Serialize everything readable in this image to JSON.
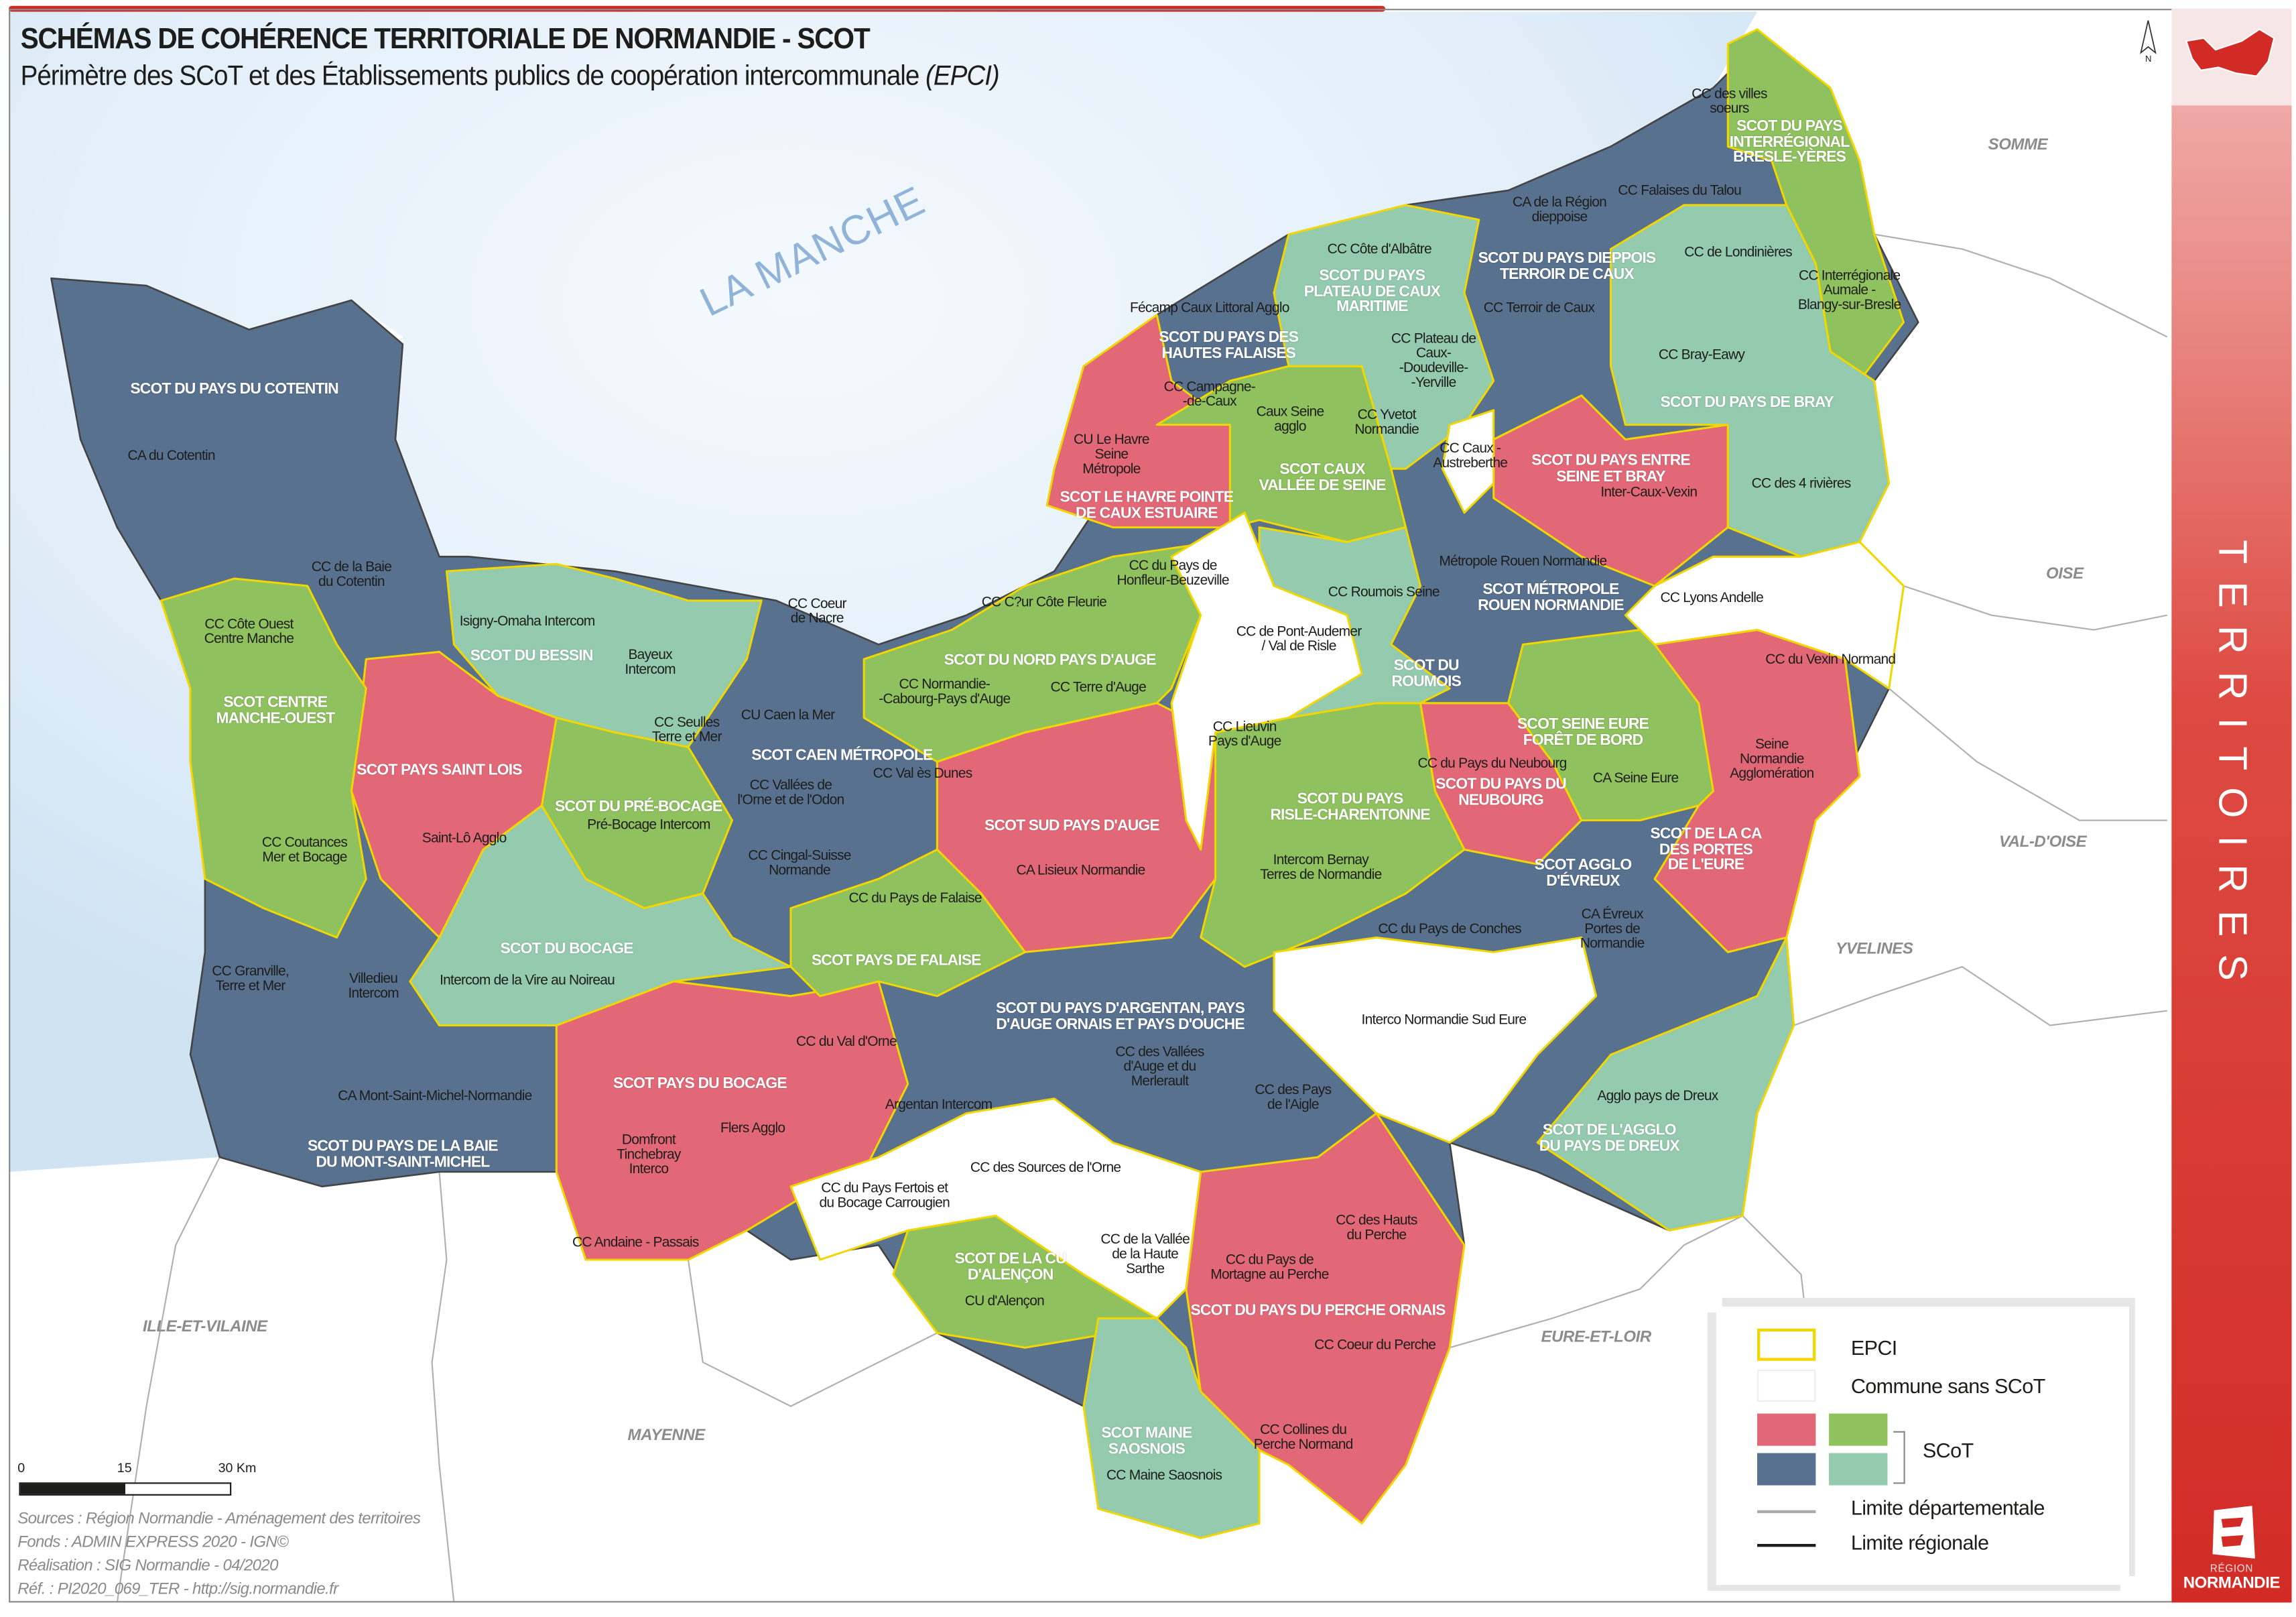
{
  "title": "SCHÉMAS DE COHÉRENCE TERRITORIALE DE NORMANDIE - SCOT",
  "subtitle": "Périmètre des SCoT et des Établissements publics de coopération intercommunale",
  "subtitle_abbr": "(EPCI)",
  "colors": {
    "scot_red": "#E36877",
    "scot_green": "#8FC25E",
    "scot_blue": "#58718F",
    "scot_teal": "#94CBAE",
    "epci_border": "#F2D600",
    "sea": "#dcebf7",
    "brand_red": "#D22B26"
  },
  "sea_label": "LA MANCHE",
  "neighbors": [
    "SOMME",
    "OISE",
    "VAL-D'OISE",
    "YVELINES",
    "EURE-ET-LOIR",
    "MAYENNE",
    "ILLE-ET-VILAINE"
  ],
  "scot_labels": [
    "SCOT DU PAYS DU COTENTIN",
    "SCOT CENTRE\nMANCHE-OUEST",
    "SCOT PAYS SAINT LOIS",
    "SCOT DU BESSIN",
    "SCOT DU PRÉ-BOCAGE",
    "SCOT CAEN MÉTROPOLE",
    "SCOT DU BOCAGE",
    "SCOT PAYS DU BOCAGE",
    "SCOT DU PAYS DE LA BAIE\nDU MONT-SAINT-MICHEL",
    "SCOT PAYS DE FALAISE",
    "SCOT DU NORD PAYS D'AUGE",
    "SCOT SUD PAYS D'AUGE",
    "SCOT DU PAYS D'ARGENTAN, PAYS\nD'AUGE ORNAIS ET PAYS D'OUCHE",
    "SCOT DE LA CU\nD'ALENÇON",
    "SCOT MAINE\nSAOSNOIS",
    "SCOT DU PAYS DU PERCHE ORNAIS",
    "SCOT DU PAYS\nRISLE-CHARENTONNE",
    "SCOT DU\nROUMOIS",
    "SCOT MÉTROPOLE\nROUEN NORMANDIE",
    "SCOT SEINE EURE\nFORÊT DE BORD",
    "SCOT DU PAYS DU\nNEUBOURG",
    "SCOT AGGLO\nD'ÉVREUX",
    "SCOT DE LA CA\nDES PORTES\nDE L'EURE",
    "SCOT DE L'AGGLO\nDU PAYS DE DREUX",
    "SCOT LE HAVRE POINTE\nDE CAUX ESTUAIRE",
    "SCOT CAUX\nVALLÉE DE SEINE",
    "SCOT DU PAYS DES\nHAUTES FALAISES",
    "SCOT DU PAYS\nPLATEAU DE CAUX\nMARITIME",
    "SCOT DU PAYS DIEPPOIS\nTERROIR DE CAUX",
    "SCOT DU PAYS ENTRE\nSEINE ET BRAY",
    "SCOT DU PAYS DE BRAY",
    "SCOT DU PAYS\nINTERRÉGIONAL\nBRESLE-YÈRES"
  ],
  "epci_labels": [
    "CA du Cotentin",
    "CC de la Baie\ndu Cotentin",
    "CC Côte Ouest\nCentre Manche",
    "Isigny-Omaha Intercom",
    "Bayeux\nIntercom",
    "CC Coeur\nde Nacre",
    "CC Seulles\nTerre et Mer",
    "CU Caen la Mer",
    "CC Vallées de\nl'Orne et de l'Odon",
    "CC Val ès Dunes",
    "Saint-Lô Agglo",
    "Pré-Bocage Intercom",
    "CC Coutances\nMer et Bocage",
    "CC Cingal-Suisse\nNormande",
    "CC du Pays de Falaise",
    "CC Granville,\nTerre et Mer",
    "Villedieu\nIntercom",
    "Intercom de la Vire au Noireau",
    "CC du Val d'Orne",
    "CA Mont-Saint-Michel-Normandie",
    "Flers Agglo",
    "Domfront\nTinchebray\nInterco",
    "CC Andaine - Passais",
    "Argentan Intercom",
    "CC des Sources de l'Orne",
    "CC du Pays Fertois et\ndu Bocage Carrougien",
    "CC de la Vallée\nde la Haute\nSarthe",
    "CU d'Alençon",
    "CC Maine Saosnois",
    "CC Collines du\nPerche Normand",
    "CC Coeur du Perche",
    "CC du Pays de\nMortagne au Perche",
    "CC des Hauts\ndu Perche",
    "CC des Vallées\nd'Auge et du\nMerlerault",
    "CC des Pays\nde l'Aigle",
    "Interco Normandie Sud Eure",
    "CC du Pays de Conches",
    "CA Évreux\nPortes de\nNormandie",
    "Agglo pays de Dreux",
    "Seine\nNormandie\nAgglomération",
    "CA Seine Eure",
    "CC du Pays du Neubourg",
    "CC du Vexin Normand",
    "CC Lyons Andelle",
    "Intercom Bernay\nTerres de Normandie",
    "CA Lisieux Normandie",
    "CC Lieuvin\nPays d'Auge",
    "CC de Pont-Audemer\n/ Val de Risle",
    "CC Roumois Seine",
    "Métropole Rouen Normandie",
    "CC Terre d'Auge",
    "CC Normandie-\n-Cabourg-Pays d'Auge",
    "CC C?ur Côte Fleurie",
    "CC du Pays de\nHonfleur-Beuzeville",
    "CU Le Havre\nSeine\nMétropole",
    "CC Campagne-\n-de-Caux",
    "Caux Seine\nagglo",
    "CC Yvetot\nNormandie",
    "CC Plateau de\nCaux-\n-Doudeville-\n-Yerville",
    "CC Caux -\nAustreberthe",
    "Inter-Caux-Vexin",
    "CC des 4 rivières",
    "Fécamp Caux Littoral Agglo",
    "CC Côte d'Albâtre",
    "CC Terroir de Caux",
    "CA de la Région\ndieppoise",
    "CC Falaises du Talou",
    "CC de Londinières",
    "CC Interrégionale\nAumale -\nBlangy-sur-Bresle",
    "CC Bray-Eawy",
    "CC des villes\nsoeurs"
  ],
  "legend": {
    "epci": "EPCI",
    "no_scot": "Commune sans SCoT",
    "scot": "SCoT",
    "dept_limit": "Limite départementale",
    "region_limit": "Limite régionale"
  },
  "scale_bar": {
    "t0": "0",
    "t1": "15",
    "t2": "30 Km"
  },
  "north": "N",
  "sources": [
    "Sources : Région Normandie - Aménagement des territoires",
    "Fonds : ADMIN EXPRESS 2020 - IGN©",
    "Réalisation : SIG Normandie - 04/2020",
    "Réf. : PI2020_069_TER - http://sig.normandie.fr"
  ],
  "sidebar_title": "TERRITOIRES",
  "logo": {
    "line1": "RÉGION",
    "line2": "NORMANDIE"
  }
}
